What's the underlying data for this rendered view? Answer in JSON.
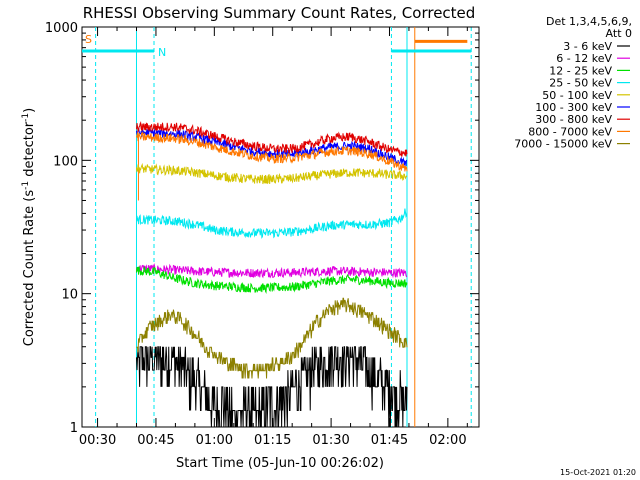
{
  "chart_data": {
    "type": "line",
    "title": "RHESSI Observing Summary Count Rates, Corrected",
    "xlabel": "Start Time (05-Jun-10 00:26:02)",
    "ylabel": "Corrected Count Rate (s",
    "ylabel_sup1": "-1",
    "ylabel_mid": " detector",
    "ylabel_sup2": "-1",
    "ylabel_end": ")",
    "y_scale": "log",
    "ylim": [
      1,
      1000
    ],
    "xlim_minutes": [
      26.0,
      128.0
    ],
    "x_ticks": [
      {
        "label": "00:30",
        "minutes": 30
      },
      {
        "label": "00:45",
        "minutes": 45
      },
      {
        "label": "01:00",
        "minutes": 60
      },
      {
        "label": "01:15",
        "minutes": 75
      },
      {
        "label": "01:30",
        "minutes": 90
      },
      {
        "label": "01:45",
        "minutes": 105
      },
      {
        "label": "02:00",
        "minutes": 120
      }
    ],
    "y_ticks": [
      {
        "label": "1",
        "value": 1
      },
      {
        "label": "10",
        "value": 10
      },
      {
        "label": "100",
        "value": 100
      },
      {
        "label": "1000",
        "value": 1000
      }
    ],
    "legend_header": [
      "Det 1,3,4,5,6,9,",
      "Att 0"
    ],
    "legend_position": "right",
    "data_window_minutes": [
      40.0,
      109.5
    ],
    "series": [
      {
        "name": "3 - 6 keV",
        "color": "#000000",
        "points": [
          [
            40,
            3.0
          ],
          [
            45,
            3.2
          ],
          [
            50,
            3.0
          ],
          [
            55,
            2.2
          ],
          [
            60,
            1.4
          ],
          [
            65,
            1.3
          ],
          [
            70,
            1.2
          ],
          [
            75,
            1.4
          ],
          [
            80,
            1.8
          ],
          [
            85,
            2.6
          ],
          [
            90,
            3.3
          ],
          [
            95,
            3.3
          ],
          [
            100,
            2.6
          ],
          [
            105,
            1.8
          ],
          [
            109,
            1.6
          ]
        ]
      },
      {
        "name": "6 - 12 keV",
        "color": "#e000e0",
        "points": [
          [
            40,
            15.5
          ],
          [
            50,
            15.0
          ],
          [
            60,
            14.5
          ],
          [
            70,
            14.3
          ],
          [
            80,
            14.4
          ],
          [
            90,
            14.8
          ],
          [
            100,
            14.5
          ],
          [
            109,
            14.3
          ]
        ]
      },
      {
        "name": "12 - 25 keV",
        "color": "#00e000",
        "points": [
          [
            40,
            15.0
          ],
          [
            45,
            14.5
          ],
          [
            50,
            13.0
          ],
          [
            55,
            12.0
          ],
          [
            60,
            11.5
          ],
          [
            70,
            11.0
          ],
          [
            80,
            11.2
          ],
          [
            85,
            11.8
          ],
          [
            90,
            12.5
          ],
          [
            95,
            12.8
          ],
          [
            100,
            12.5
          ],
          [
            105,
            12.0
          ],
          [
            109,
            12.0
          ]
        ]
      },
      {
        "name": "25 - 50 keV",
        "color": "#00e8f0",
        "points": [
          [
            40,
            36
          ],
          [
            45,
            35.5
          ],
          [
            50,
            35
          ],
          [
            55,
            33
          ],
          [
            60,
            30
          ],
          [
            65,
            29
          ],
          [
            70,
            28.5
          ],
          [
            75,
            28.5
          ],
          [
            80,
            29
          ],
          [
            85,
            30.5
          ],
          [
            90,
            32.5
          ],
          [
            95,
            33
          ],
          [
            100,
            33
          ],
          [
            105,
            34
          ],
          [
            108,
            37
          ],
          [
            109.5,
            42
          ]
        ]
      },
      {
        "name": "50 - 100 keV",
        "color": "#d4c400",
        "points": [
          [
            40,
            87
          ],
          [
            45,
            85
          ],
          [
            50,
            84
          ],
          [
            55,
            81
          ],
          [
            60,
            77
          ],
          [
            65,
            74
          ],
          [
            70,
            72
          ],
          [
            75,
            72
          ],
          [
            80,
            73
          ],
          [
            85,
            76
          ],
          [
            90,
            79
          ],
          [
            95,
            81
          ],
          [
            100,
            80
          ],
          [
            105,
            78
          ],
          [
            109.5,
            76
          ]
        ]
      },
      {
        "name": "100 - 300 keV",
        "color": "#0000ff",
        "points": [
          [
            40,
            162
          ],
          [
            45,
            160
          ],
          [
            50,
            158
          ],
          [
            55,
            150
          ],
          [
            60,
            138
          ],
          [
            65,
            126
          ],
          [
            70,
            117
          ],
          [
            75,
            112
          ],
          [
            80,
            111
          ],
          [
            85,
            118
          ],
          [
            90,
            126
          ],
          [
            95,
            128
          ],
          [
            100,
            122
          ],
          [
            105,
            105
          ],
          [
            109.5,
            94
          ]
        ]
      },
      {
        "name": "300 - 800 keV",
        "color": "#e00000",
        "points": [
          [
            40,
            177
          ],
          [
            45,
            178
          ],
          [
            50,
            178
          ],
          [
            55,
            168
          ],
          [
            60,
            152
          ],
          [
            65,
            138
          ],
          [
            70,
            128
          ],
          [
            75,
            122
          ],
          [
            80,
            122
          ],
          [
            85,
            132
          ],
          [
            90,
            147
          ],
          [
            95,
            150
          ],
          [
            100,
            137
          ],
          [
            105,
            120
          ],
          [
            109.5,
            113
          ]
        ]
      },
      {
        "name": "800 - 7000 keV",
        "color": "#ff7800",
        "points": [
          [
            40,
            150
          ],
          [
            45,
            148
          ],
          [
            50,
            146
          ],
          [
            55,
            138
          ],
          [
            60,
            126
          ],
          [
            65,
            116
          ],
          [
            70,
            108
          ],
          [
            75,
            103
          ],
          [
            80,
            104
          ],
          [
            85,
            110
          ],
          [
            90,
            117
          ],
          [
            95,
            118
          ],
          [
            100,
            112
          ],
          [
            105,
            98
          ],
          [
            109.5,
            86
          ]
        ]
      },
      {
        "name": "7000 - 15000 keV",
        "color": "#8c8000",
        "points": [
          [
            40,
            4.0
          ],
          [
            43,
            5.5
          ],
          [
            46,
            6.2
          ],
          [
            49,
            7.0
          ],
          [
            52,
            6.2
          ],
          [
            55,
            5.0
          ],
          [
            58,
            4.0
          ],
          [
            62,
            3.2
          ],
          [
            66,
            2.8
          ],
          [
            70,
            2.7
          ],
          [
            74,
            2.8
          ],
          [
            78,
            3.1
          ],
          [
            82,
            4.0
          ],
          [
            86,
            6.0
          ],
          [
            90,
            7.8
          ],
          [
            94,
            8.3
          ],
          [
            98,
            7.3
          ],
          [
            102,
            6.2
          ],
          [
            105,
            5.2
          ],
          [
            109,
            4.3
          ]
        ]
      }
    ],
    "saa_bar": {
      "label": "S",
      "label_color": "#ff7800",
      "color": "#ff7800",
      "start_minutes": 111.5,
      "end_minutes": 125.0,
      "level": 780
    },
    "night_bars": {
      "label": "N",
      "label_color": "#00e8f0",
      "color": "#00e8f0",
      "level": 660,
      "segments": [
        [
          26.0,
          44.5
        ],
        [
          105.5,
          126.0
        ]
      ]
    },
    "night_markers_minutes": [
      29.5,
      44.5,
      105.5,
      126.0
    ],
    "orange_markers_minutes": [
      111.5
    ],
    "cyan_solid_markers_minutes": [
      40.0,
      109.5
    ],
    "orange_solid_markers_minutes": [
      40.5
    ],
    "footer_timestamp": "15-Oct-2021 01:20"
  }
}
